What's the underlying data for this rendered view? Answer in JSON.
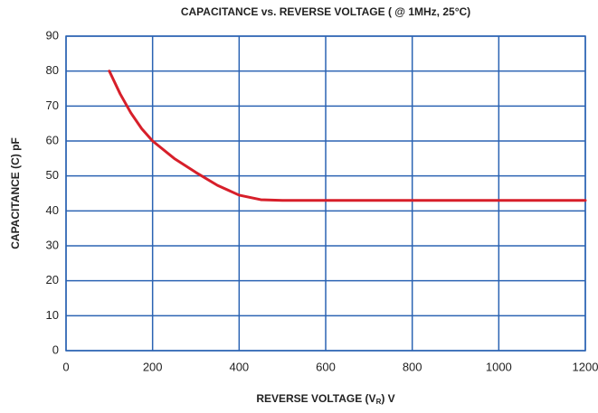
{
  "chart_data": {
    "type": "line",
    "title": "CAPACITANCE vs. REVERSE VOLTAGE ( @ 1MHz, 25°C)",
    "xlabel": [
      "REVERSE VOLTAGE (V",
      "R",
      ") V"
    ],
    "ylabel": "CAPACITANCE (C) pF",
    "x": [
      100,
      125,
      150,
      175,
      200,
      250,
      300,
      350,
      400,
      450,
      500,
      600,
      700,
      800,
      900,
      1000,
      1100,
      1200
    ],
    "series": [
      {
        "color": "#d71f2a",
        "values": [
          80,
          73.5,
          68,
          63.5,
          60,
          55,
          51,
          47.3,
          44.5,
          43.2,
          43,
          43,
          43,
          43,
          43,
          43,
          43,
          43
        ]
      }
    ],
    "xlim": [
      0,
      1200
    ],
    "xticks": [
      0,
      200,
      400,
      600,
      800,
      1000,
      1200
    ],
    "ylim": [
      0,
      90
    ],
    "yticks": [
      0,
      10,
      20,
      30,
      40,
      50,
      60,
      70,
      80,
      90
    ],
    "grid": true,
    "grid_color": "#2b63b3"
  }
}
